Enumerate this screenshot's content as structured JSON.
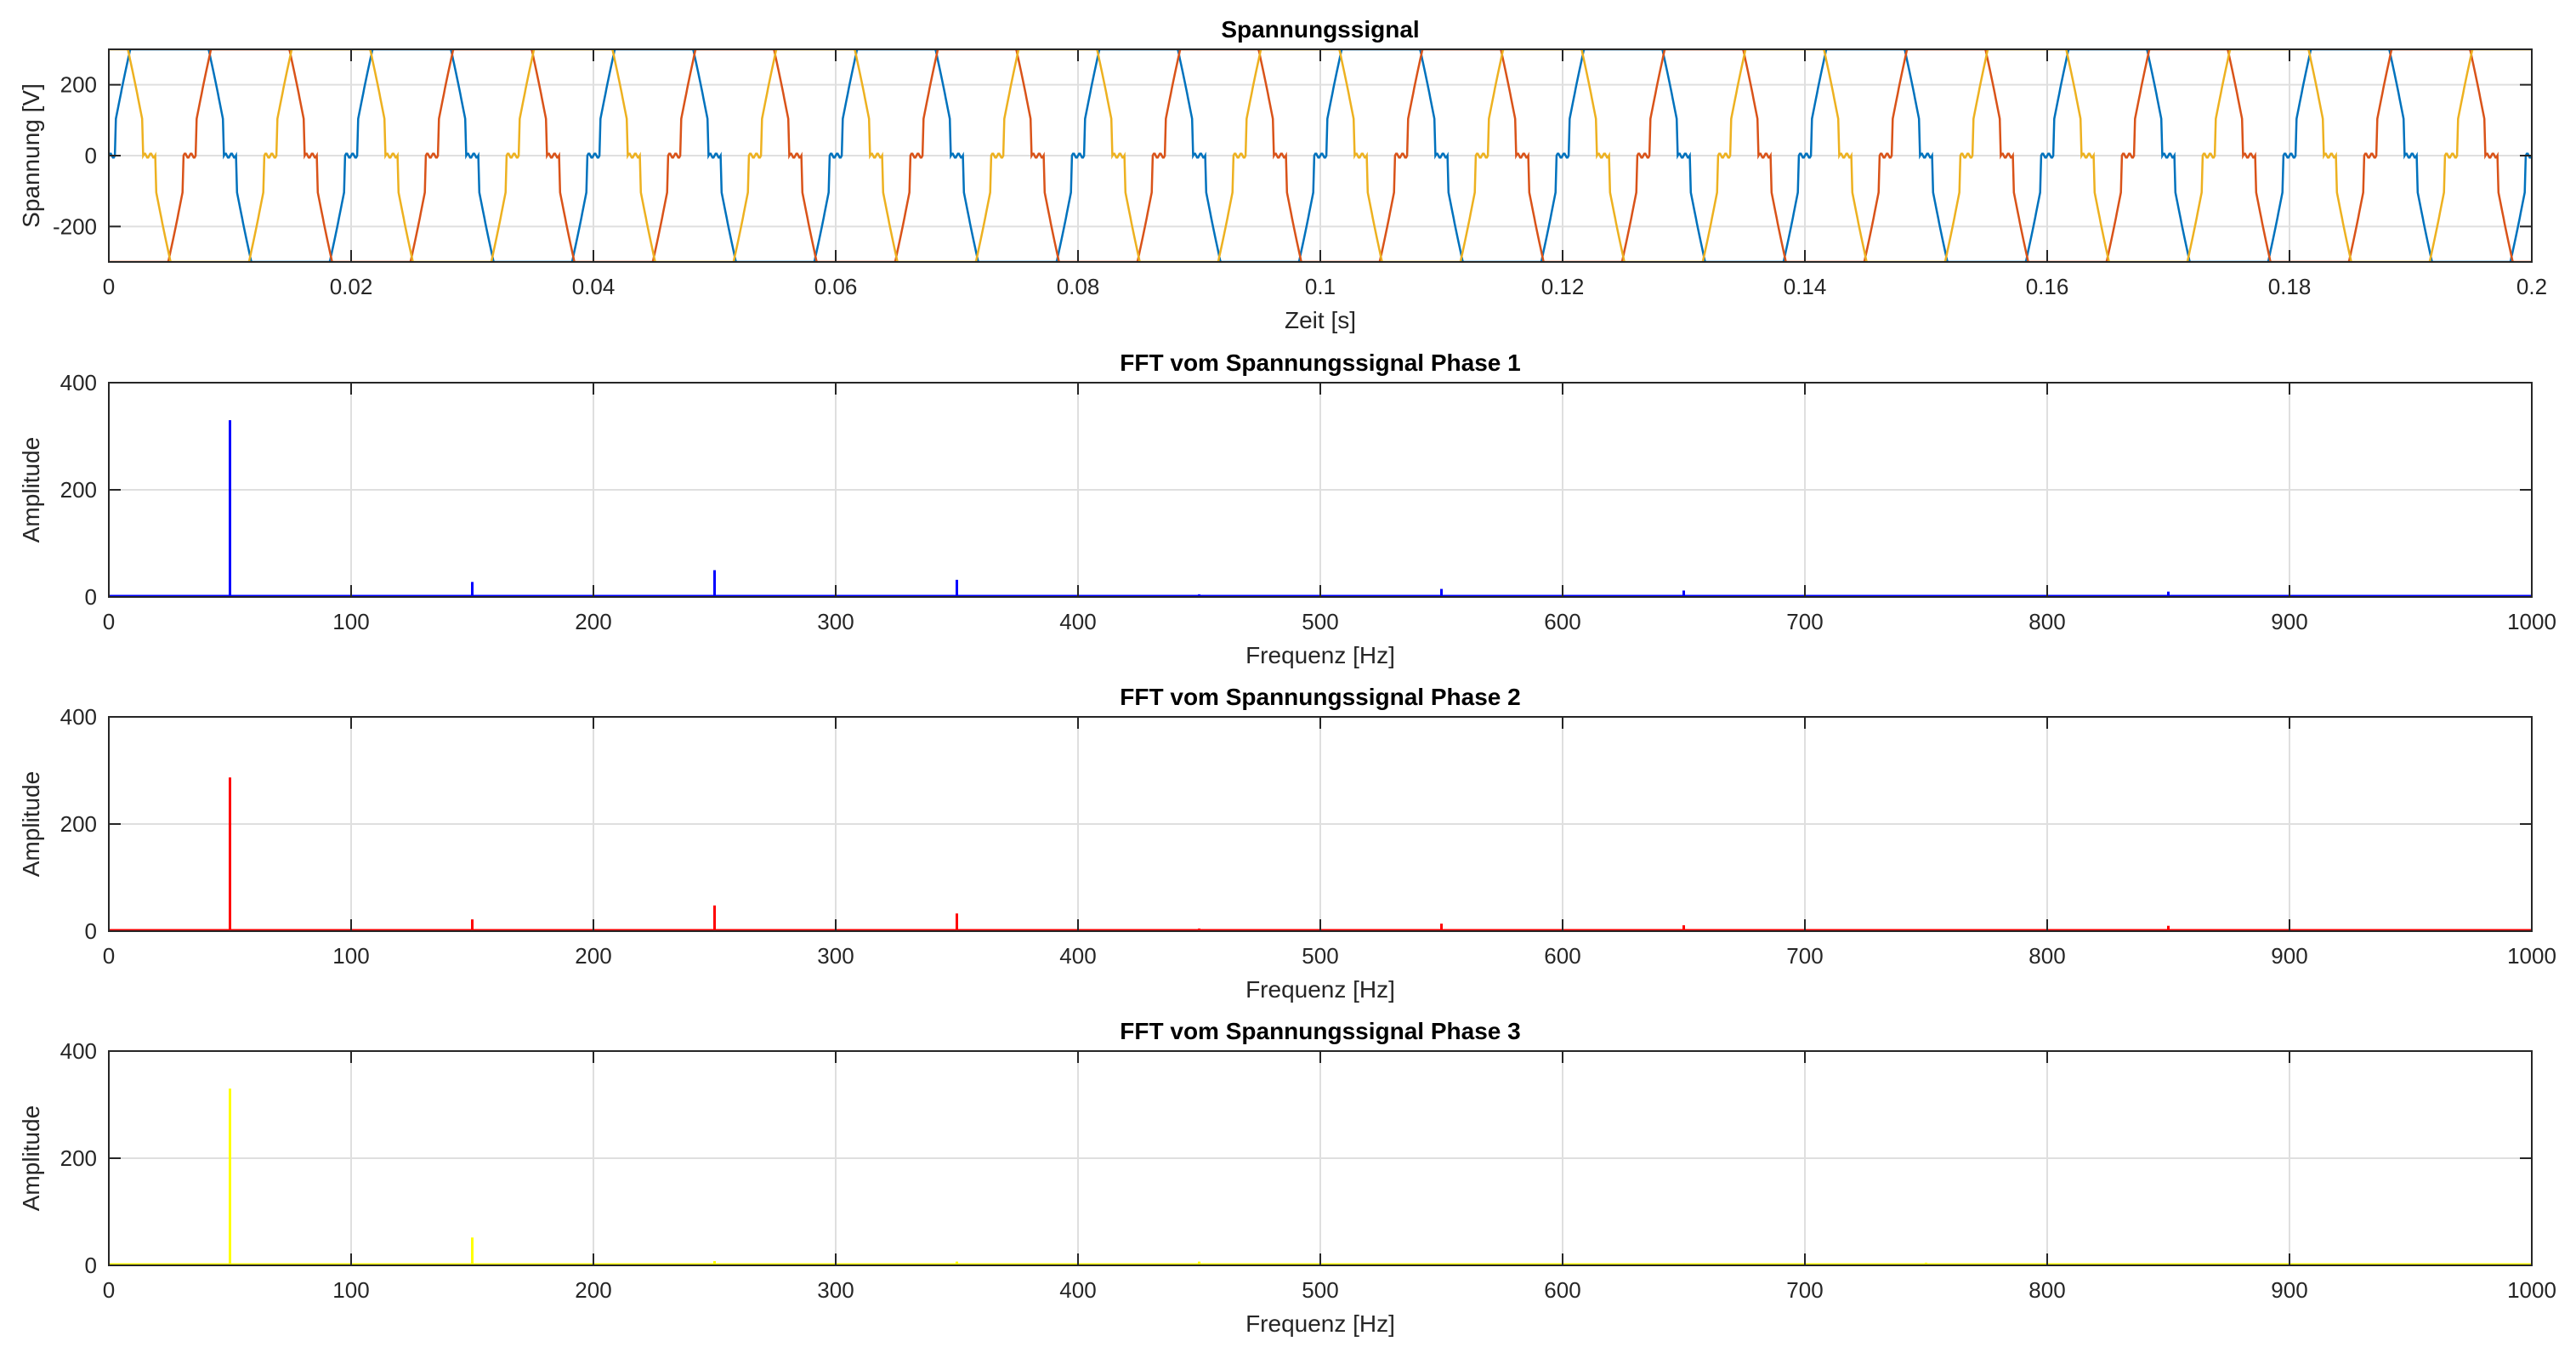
{
  "chart_data": [
    {
      "type": "line",
      "title": "Spannungssignal",
      "xlabel": "Zeit [s]",
      "ylabel": "Spannung [V]",
      "xlim": [
        0,
        0.2
      ],
      "ylim": [
        -300,
        300
      ],
      "xticks": [
        0,
        0.02,
        0.04,
        0.06,
        0.08,
        0.1,
        0.12,
        0.14,
        0.16,
        0.18,
        0.2
      ],
      "xtick_labels": [
        "0",
        "0.02",
        "0.04",
        "0.06",
        "0.08",
        "0.1",
        "0.12",
        "0.14",
        "0.16",
        "0.18",
        "0.2"
      ],
      "yticks": [
        -200,
        0,
        200
      ],
      "ytick_labels": [
        "-200",
        "0",
        "200"
      ],
      "grid": true,
      "fundamental_hz": 50,
      "clip_v": 300,
      "series": [
        {
          "color": "#0072BD",
          "phase_deg": 0
        },
        {
          "color": "#D95319",
          "phase_deg": -120
        },
        {
          "color": "#EDB120",
          "phase_deg": 120
        }
      ]
    },
    {
      "type": "line",
      "title": "FFT vom Spannungssignal Phase 1",
      "xlabel": "Frequenz [Hz]",
      "ylabel": "Amplitude",
      "xlim": [
        0,
        1000
      ],
      "ylim": [
        0,
        400
      ],
      "xticks": [
        0,
        100,
        200,
        300,
        400,
        500,
        600,
        700,
        800,
        900,
        1000
      ],
      "xtick_labels": [
        "0",
        "100",
        "200",
        "300",
        "400",
        "500",
        "600",
        "700",
        "800",
        "900",
        "1000"
      ],
      "yticks": [
        0,
        200,
        400
      ],
      "ytick_labels": [
        "0",
        "200",
        "400"
      ],
      "grid": true,
      "color": "#0000FF",
      "peaks": [
        {
          "x": 50,
          "y": 330
        },
        {
          "x": 150,
          "y": 28
        },
        {
          "x": 250,
          "y": 50
        },
        {
          "x": 350,
          "y": 32
        },
        {
          "x": 450,
          "y": 5
        },
        {
          "x": 550,
          "y": 15
        },
        {
          "x": 650,
          "y": 12
        },
        {
          "x": 750,
          "y": 3
        },
        {
          "x": 850,
          "y": 10
        },
        {
          "x": 950,
          "y": 3
        }
      ]
    },
    {
      "type": "line",
      "title": "FFT vom Spannungssignal Phase 2",
      "xlabel": "Frequenz [Hz]",
      "ylabel": "Amplitude",
      "xlim": [
        0,
        1000
      ],
      "ylim": [
        0,
        400
      ],
      "xticks": [
        0,
        100,
        200,
        300,
        400,
        500,
        600,
        700,
        800,
        900,
        1000
      ],
      "xtick_labels": [
        "0",
        "100",
        "200",
        "300",
        "400",
        "500",
        "600",
        "700",
        "800",
        "900",
        "1000"
      ],
      "yticks": [
        0,
        200,
        400
      ],
      "ytick_labels": [
        "0",
        "200",
        "400"
      ],
      "grid": true,
      "color": "#FF0000",
      "peaks": [
        {
          "x": 50,
          "y": 287
        },
        {
          "x": 150,
          "y": 22
        },
        {
          "x": 250,
          "y": 48
        },
        {
          "x": 350,
          "y": 33
        },
        {
          "x": 450,
          "y": 5
        },
        {
          "x": 550,
          "y": 14
        },
        {
          "x": 650,
          "y": 11
        },
        {
          "x": 750,
          "y": 3
        },
        {
          "x": 850,
          "y": 10
        },
        {
          "x": 950,
          "y": 3
        }
      ]
    },
    {
      "type": "line",
      "title": "FFT vom Spannungssignal Phase 3",
      "xlabel": "Frequenz [Hz]",
      "ylabel": "Amplitude",
      "xlim": [
        0,
        1000
      ],
      "ylim": [
        0,
        400
      ],
      "xticks": [
        0,
        100,
        200,
        300,
        400,
        500,
        600,
        700,
        800,
        900,
        1000
      ],
      "xtick_labels": [
        "0",
        "100",
        "200",
        "300",
        "400",
        "500",
        "600",
        "700",
        "800",
        "900",
        "1000"
      ],
      "yticks": [
        0,
        200,
        400
      ],
      "ytick_labels": [
        "0",
        "200",
        "400"
      ],
      "grid": true,
      "color": "#FFFF00",
      "peaks": [
        {
          "x": 50,
          "y": 330
        },
        {
          "x": 150,
          "y": 52
        },
        {
          "x": 250,
          "y": 8
        },
        {
          "x": 350,
          "y": 7
        },
        {
          "x": 450,
          "y": 7
        },
        {
          "x": 550,
          "y": 3
        },
        {
          "x": 650,
          "y": 4
        },
        {
          "x": 750,
          "y": 5
        },
        {
          "x": 850,
          "y": 4
        },
        {
          "x": 950,
          "y": 3
        }
      ]
    }
  ]
}
